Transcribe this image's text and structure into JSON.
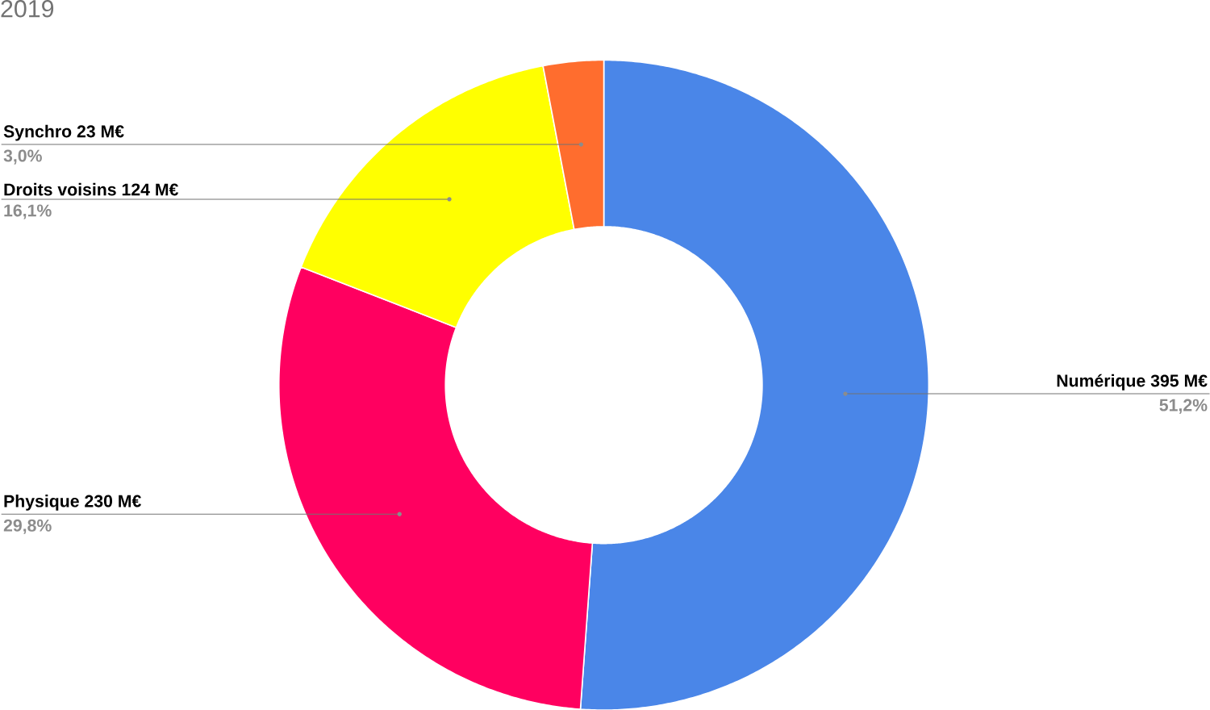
{
  "chart_data": {
    "type": "donut",
    "title": "2019",
    "categories": [
      "Numérique 395 M€",
      "Physique 230 M€",
      "Droits voisins 124 M€",
      "Synchro 23 M€"
    ],
    "values": [
      51.2,
      29.8,
      16.1,
      3.0
    ],
    "value_labels": [
      "51,2%",
      "29,8%",
      "16,1%",
      "3,0%"
    ],
    "colors": [
      "#4a86e8",
      "#ff0060",
      "#ffff00",
      "#ff6d2e"
    ]
  }
}
